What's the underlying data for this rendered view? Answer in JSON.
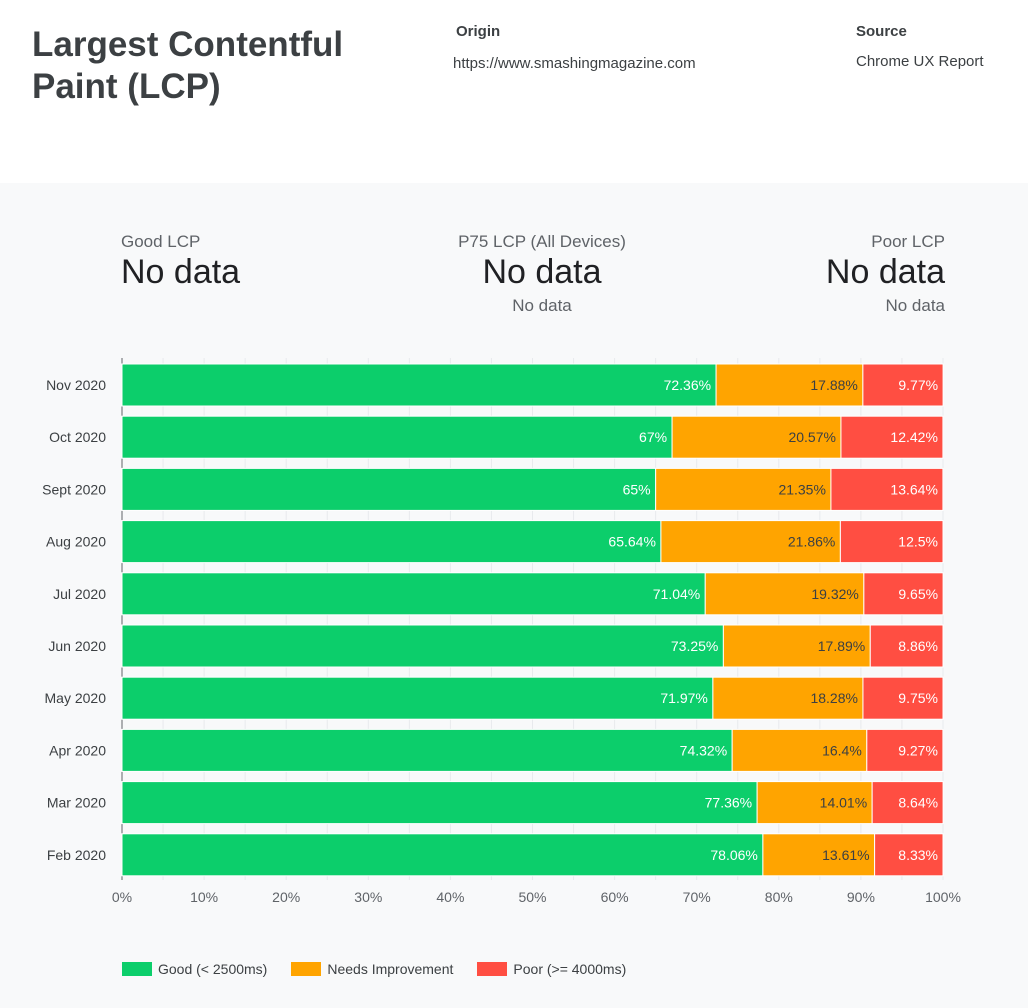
{
  "header": {
    "title": "Largest Contentful Paint (LCP)",
    "origin_label": "Origin",
    "origin_value": "https://www.smashingmagazine.com",
    "source_label": "Source",
    "source_value": "Chrome UX Report"
  },
  "stats": [
    {
      "label": "Good LCP",
      "value": "No data",
      "sub": ""
    },
    {
      "label": "P75 LCP (All Devices)",
      "value": "No data",
      "sub": "No data"
    },
    {
      "label": "Poor LCP",
      "value": "No data",
      "sub": "No data"
    }
  ],
  "colors": {
    "good": "#0cce6b",
    "needs": "#ffa400",
    "poor": "#ff4e42"
  },
  "chart_data": {
    "type": "bar",
    "orientation": "horizontal",
    "stacked": true,
    "categories": [
      "Nov 2020",
      "Oct 2020",
      "Sept 2020",
      "Aug 2020",
      "Jul 2020",
      "Jun 2020",
      "May 2020",
      "Apr 2020",
      "Mar 2020",
      "Feb 2020"
    ],
    "series": [
      {
        "name": "Good (< 2500ms)",
        "values": [
          72.36,
          67,
          65,
          65.64,
          71.04,
          73.25,
          71.97,
          74.32,
          77.36,
          78.06
        ]
      },
      {
        "name": "Needs Improvement",
        "values": [
          17.88,
          20.57,
          21.35,
          21.86,
          19.32,
          17.89,
          18.28,
          16.4,
          14.01,
          13.61
        ]
      },
      {
        "name": "Poor (>= 4000ms)",
        "values": [
          9.77,
          12.42,
          13.64,
          12.5,
          9.65,
          8.86,
          9.75,
          9.27,
          8.64,
          8.33
        ]
      }
    ],
    "xlim": [
      0,
      100
    ],
    "xticks": [
      "0%",
      "10%",
      "20%",
      "30%",
      "40%",
      "50%",
      "60%",
      "70%",
      "80%",
      "90%",
      "100%"
    ],
    "grid": true,
    "legend": "bottom-left"
  }
}
